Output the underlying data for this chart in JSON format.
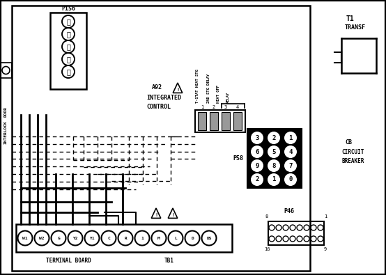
{
  "bg_color": "#ffffff",
  "lc": "#000000",
  "fig_w": 5.54,
  "fig_h": 3.95,
  "dpi": 100,
  "term_labels": [
    "W1",
    "W2",
    "G",
    "Y2",
    "Y1",
    "C",
    "R",
    "1",
    "M",
    "L",
    "D",
    "DS"
  ]
}
